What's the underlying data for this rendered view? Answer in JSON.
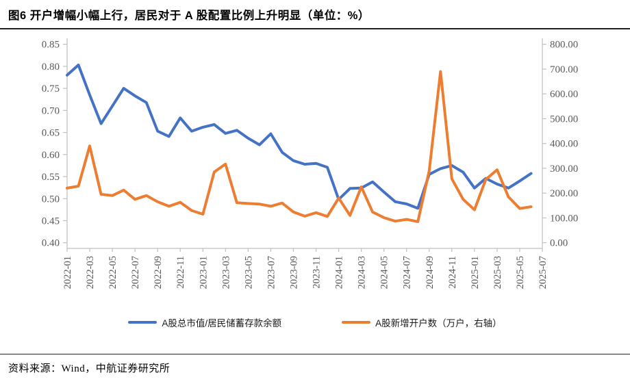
{
  "page": {
    "title": "图6 开户增幅小幅上行，居民对于 A 股配置比例上升明显（单位：%）",
    "source": "资料来源：Wind，中航证券研究所"
  },
  "colors": {
    "series_blue": "#4472C4",
    "series_orange": "#ED7D31",
    "axis_line": "#BFBFBF",
    "axis_text": "#595959",
    "rule": "#1F1F1F"
  },
  "chart_data": {
    "type": "line",
    "title": "图6 开户增幅小幅上行，居民对于 A 股配置比例上升明显（单位：%）",
    "grid": false,
    "legend_position": "bottom",
    "categories": [
      "2022-01",
      "2022-02",
      "2022-03",
      "2022-04",
      "2022-05",
      "2022-06",
      "2022-07",
      "2022-08",
      "2022-09",
      "2022-10",
      "2022-11",
      "2022-12",
      "2023-01",
      "2023-02",
      "2023-03",
      "2023-04",
      "2023-05",
      "2023-06",
      "2023-07",
      "2023-08",
      "2023-09",
      "2023-10",
      "2023-11",
      "2023-12",
      "2024-01",
      "2024-02",
      "2024-03",
      "2024-04",
      "2024-05",
      "2024-06",
      "2024-07",
      "2024-08",
      "2024-09",
      "2024-10",
      "2024-11",
      "2024-12",
      "2025-01",
      "2025-02",
      "2025-03",
      "2025-04",
      "2025-05",
      "2025-06"
    ],
    "x_axis_tick_labels": [
      "2022-01",
      "2022-03",
      "2022-05",
      "2022-07",
      "2022-09",
      "2022-11",
      "2023-01",
      "2023-03",
      "2023-05",
      "2023-07",
      "2023-09",
      "2023-11",
      "2024-01",
      "2024-03",
      "2024-05",
      "2024-07",
      "2024-09",
      "2024-11",
      "2025-01",
      "2025-03",
      "2025-05",
      "2025-07"
    ],
    "left_axis": {
      "min": 0.4,
      "max": 0.85,
      "step": 0.05,
      "decimals": 2
    },
    "right_axis": {
      "min": 0.0,
      "max": 800.0,
      "step": 100.0,
      "decimals": 2
    },
    "series": [
      {
        "name": "A股总市值/居民储蓄存款余额",
        "axis": "left",
        "color": "#4472C4",
        "values": [
          0.78,
          0.803,
          0.735,
          0.67,
          0.71,
          0.75,
          0.733,
          0.718,
          0.653,
          0.641,
          0.683,
          0.653,
          0.662,
          0.668,
          0.648,
          0.655,
          0.637,
          0.622,
          0.647,
          0.605,
          0.586,
          0.578,
          0.58,
          0.571,
          0.498,
          0.523,
          0.524,
          0.538,
          0.515,
          0.493,
          0.488,
          0.478,
          0.555,
          0.568,
          0.575,
          0.56,
          0.524,
          0.546,
          0.533,
          0.524,
          0.54,
          0.557
        ]
      },
      {
        "name": "A股新增开户数（万户，右轴）",
        "axis": "right",
        "color": "#ED7D31",
        "values": [
          220,
          228,
          390,
          195,
          190,
          212,
          175,
          190,
          165,
          147,
          163,
          130,
          115,
          285,
          317,
          161,
          158,
          156,
          147,
          160,
          124,
          107,
          121,
          106,
          180,
          110,
          225,
          124,
          101,
          87,
          94,
          85,
          290,
          690,
          258,
          175,
          133,
          255,
          294,
          185,
          138,
          145
        ]
      }
    ]
  }
}
